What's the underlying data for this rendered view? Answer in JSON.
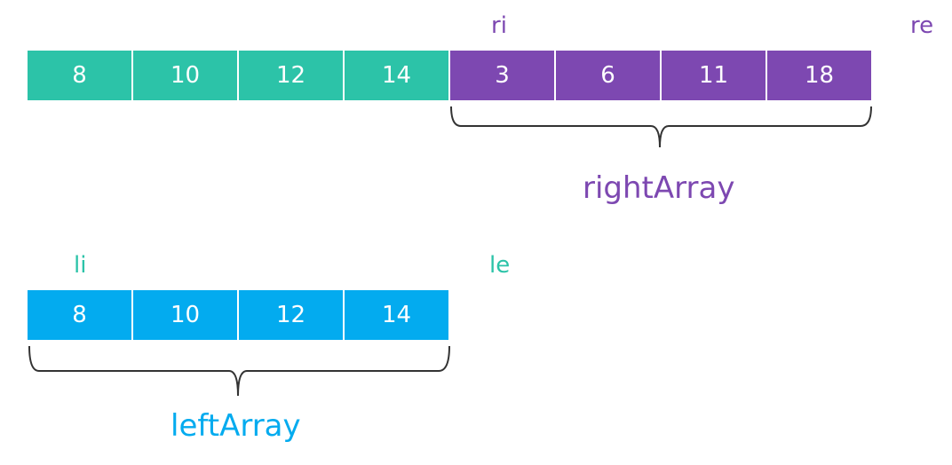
{
  "colors": {
    "teal": "#2cc3a8",
    "purple": "#7d48b1",
    "blue": "#03abef",
    "brace": "#333333"
  },
  "top_array": {
    "left_values": [
      "8",
      "10",
      "12",
      "14"
    ],
    "right_values": [
      "3",
      "6",
      "11",
      "18"
    ]
  },
  "right_array": {
    "name": "rightArray",
    "start_marker": "ri",
    "end_marker": "re"
  },
  "left_array": {
    "name": "leftArray",
    "values": [
      "8",
      "10",
      "12",
      "14"
    ],
    "start_marker": "li",
    "end_marker": "le"
  }
}
